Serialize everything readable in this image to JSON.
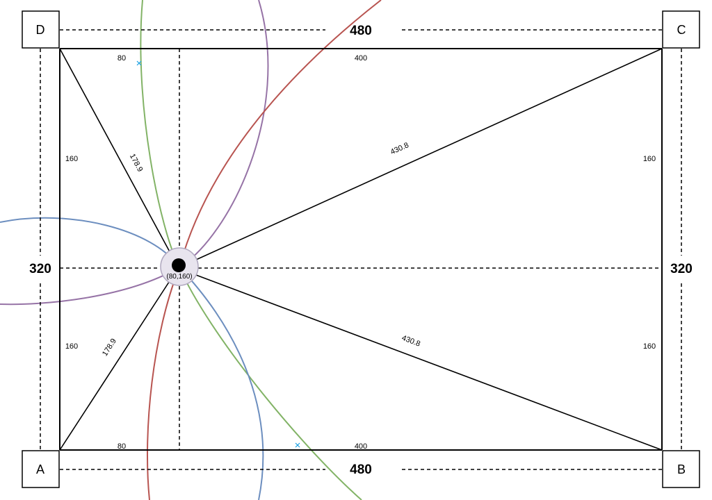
{
  "corners": {
    "A": "A",
    "B": "B",
    "C": "C",
    "D": "D"
  },
  "dimensions": {
    "width_top": "480",
    "width_bottom": "480",
    "height_left": "320",
    "height_right": "320"
  },
  "segments": {
    "top_left": "80",
    "top_right": "400",
    "bottom_left": "80",
    "bottom_right": "400",
    "left_upper": "160",
    "left_lower": "160",
    "right_upper": "160",
    "right_lower": "160"
  },
  "distances": {
    "to_D": "178.9",
    "to_A": "178.9",
    "to_C": "430.8",
    "to_B": "430.8"
  },
  "point": {
    "label": "(80,160)"
  },
  "colors": {
    "green": "#82b366",
    "purple": "#9673a6",
    "red": "#b85450",
    "blue": "#6c8ebf",
    "marker": "#1ba1e2",
    "point_halo_fill": "#e8e4ee",
    "point_halo_stroke": "#b0a8bf"
  }
}
